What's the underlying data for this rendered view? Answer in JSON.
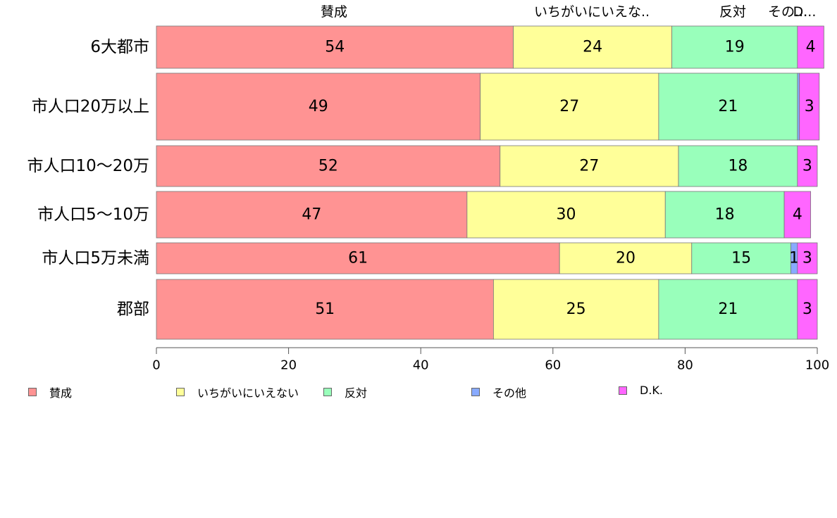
{
  "chart_data": {
    "type": "bar",
    "orientation": "horizontal",
    "stacked": true,
    "categories": [
      "6大都市",
      "市人口20万以上",
      "市人口10～20万",
      "市人口5～10万",
      "市人口5万未満",
      "郡部"
    ],
    "series": [
      {
        "name": "賛成",
        "color": "#ff9393",
        "values": [
          54,
          49,
          52,
          47,
          61,
          51
        ]
      },
      {
        "name": "いちがいにいえない",
        "color": "#ffff99",
        "values": [
          24,
          27,
          27,
          30,
          20,
          25
        ]
      },
      {
        "name": "反対",
        "color": "#99ffbb",
        "values": [
          19,
          21,
          18,
          18,
          15,
          21
        ]
      },
      {
        "name": "その他",
        "color": "#88aaff",
        "values": [
          0,
          0.3,
          0,
          0,
          1,
          0
        ]
      },
      {
        "name": "D.K.",
        "color": "#ff66ff",
        "values": [
          4,
          3,
          3,
          4,
          3,
          3
        ]
      }
    ],
    "top_labels": [
      "賛成",
      "いちがいにいえな..",
      "反対",
      "その...",
      "D..."
    ],
    "xlim": [
      0,
      100
    ],
    "xticks": [
      "0",
      "20",
      "40",
      "60",
      "80",
      "100"
    ],
    "grid": false,
    "legend_position": "bottom-left"
  }
}
